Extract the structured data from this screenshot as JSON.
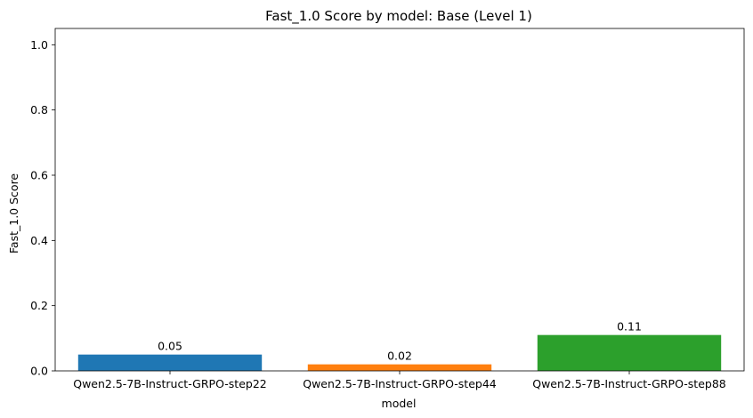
{
  "chart_data": {
    "type": "bar",
    "title": "Fast_1.0 Score by model: Base (Level 1)",
    "xlabel": "model",
    "ylabel": "Fast_1.0 Score",
    "categories": [
      "Qwen2.5-7B-Instruct-GRPO-step22",
      "Qwen2.5-7B-Instruct-GRPO-step44",
      "Qwen2.5-7B-Instruct-GRPO-step88"
    ],
    "values": [
      0.05,
      0.02,
      0.11
    ],
    "value_labels": [
      "0.05",
      "0.02",
      "0.11"
    ],
    "colors": [
      "#1f77b4",
      "#ff7f0e",
      "#2ca02c"
    ],
    "ylim": [
      0,
      1.05
    ],
    "yticks": [
      0.0,
      0.2,
      0.4,
      0.6,
      0.8,
      1.0
    ],
    "ytick_labels": [
      "0.0",
      "0.2",
      "0.4",
      "0.6",
      "0.8",
      "1.0"
    ],
    "grid": false,
    "legend": "none"
  }
}
